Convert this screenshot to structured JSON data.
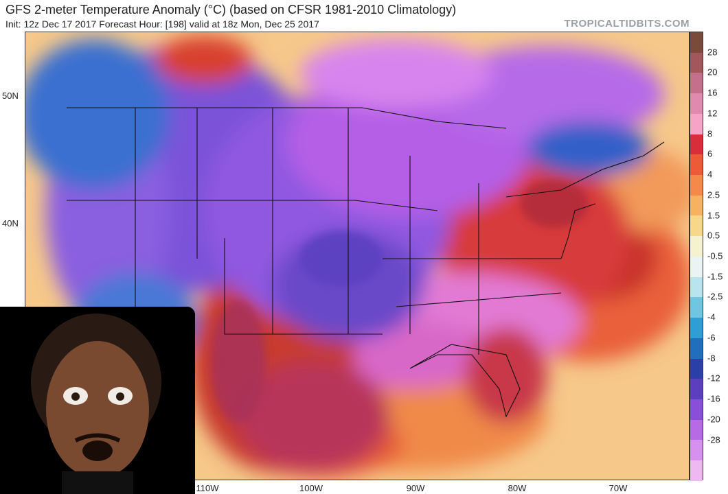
{
  "header": {
    "title": "GFS 2-meter Temperature Anomaly (°C) (based on CFSR 1981-2010 Climatology)",
    "subtitle": "Init: 12z Dec 17 2017   Forecast Hour: [198]   valid at 18z Mon, Dec 25 2017",
    "brand": "TROPICALTIDBITS.COM"
  },
  "map": {
    "lat_labels": [
      "50N",
      "40N"
    ],
    "lon_labels": [
      "110W",
      "100W",
      "90W",
      "80W",
      "70W"
    ]
  },
  "colorbar": {
    "labels": [
      "28",
      "20",
      "16",
      "12",
      "8",
      "6",
      "4",
      "2.5",
      "1.5",
      "0.5",
      "-0.5",
      "-1.5",
      "-2.5",
      "-4",
      "-6",
      "-8",
      "-12",
      "-16",
      "-20",
      "-28"
    ],
    "colors": [
      "#7a4a3a",
      "#a2585a",
      "#c4708c",
      "#e08ab0",
      "#f5a3c6",
      "#d82e3a",
      "#ee5a38",
      "#f5894a",
      "#f7b25f",
      "#f8d888",
      "#f5f3cf",
      "#eaf4f4",
      "#b8e4ee",
      "#6fc6e2",
      "#2f9ed6",
      "#1f6fbd",
      "#2a3fa7",
      "#5a3fbf",
      "#8a4fd8",
      "#b86ae6",
      "#d890ee",
      "#f0b8f0"
    ]
  },
  "overlay": {
    "icon": "person-photo"
  }
}
